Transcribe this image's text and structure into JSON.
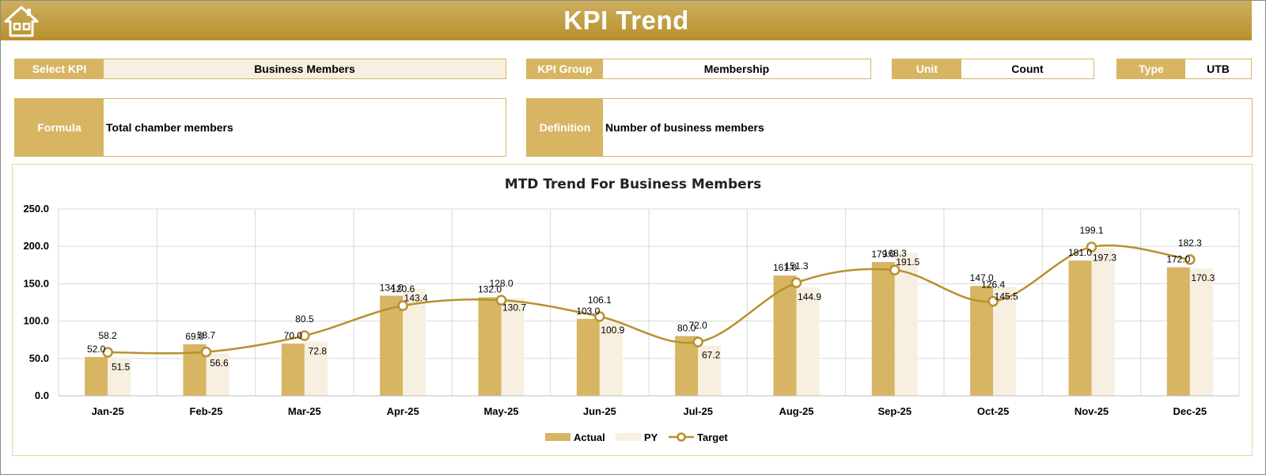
{
  "header": {
    "title": "KPI Trend"
  },
  "icons": {
    "home": "home-icon"
  },
  "filters": {
    "select_kpi_label": "Select KPI",
    "select_kpi_value": "Business Members",
    "kpi_group_label": "KPI Group",
    "kpi_group_value": "Membership",
    "unit_label": "Unit",
    "unit_value": "Count",
    "type_label": "Type",
    "type_value": "UTB"
  },
  "info": {
    "formula_label": "Formula",
    "formula_value": "Total chamber members",
    "definition_label": "Definition",
    "definition_value": "Number of business members"
  },
  "colors": {
    "gold": "#d7b563",
    "cream": "#f7efdf",
    "target_line": "#b8912f",
    "header": "#c39f45"
  },
  "chart_data": {
    "type": "bar",
    "title": "MTD Trend For Business Members",
    "categories": [
      "Jan-25",
      "Feb-25",
      "Mar-25",
      "Apr-25",
      "May-25",
      "Jun-25",
      "Jul-25",
      "Aug-25",
      "Sep-25",
      "Oct-25",
      "Nov-25",
      "Dec-25"
    ],
    "series": [
      {
        "name": "Actual",
        "kind": "bar",
        "values": [
          52.0,
          69.0,
          70.0,
          134.0,
          132.0,
          103.0,
          80.0,
          161.0,
          179.0,
          147.0,
          181.0,
          172.0
        ]
      },
      {
        "name": "PY",
        "kind": "bar",
        "values": [
          51.5,
          56.6,
          72.8,
          143.4,
          130.7,
          100.9,
          67.2,
          144.9,
          191.5,
          145.5,
          197.3,
          170.3
        ]
      },
      {
        "name": "Target",
        "kind": "line",
        "values": [
          58.2,
          58.7,
          80.5,
          120.6,
          128.0,
          106.1,
          72.0,
          151.3,
          168.3,
          126.4,
          199.1,
          182.3
        ]
      }
    ],
    "ylim": [
      0,
      250
    ],
    "yticks": [
      "0.0",
      "50.0",
      "100.0",
      "150.0",
      "200.0",
      "250.0"
    ],
    "grid": true,
    "legend_position": "bottom"
  }
}
